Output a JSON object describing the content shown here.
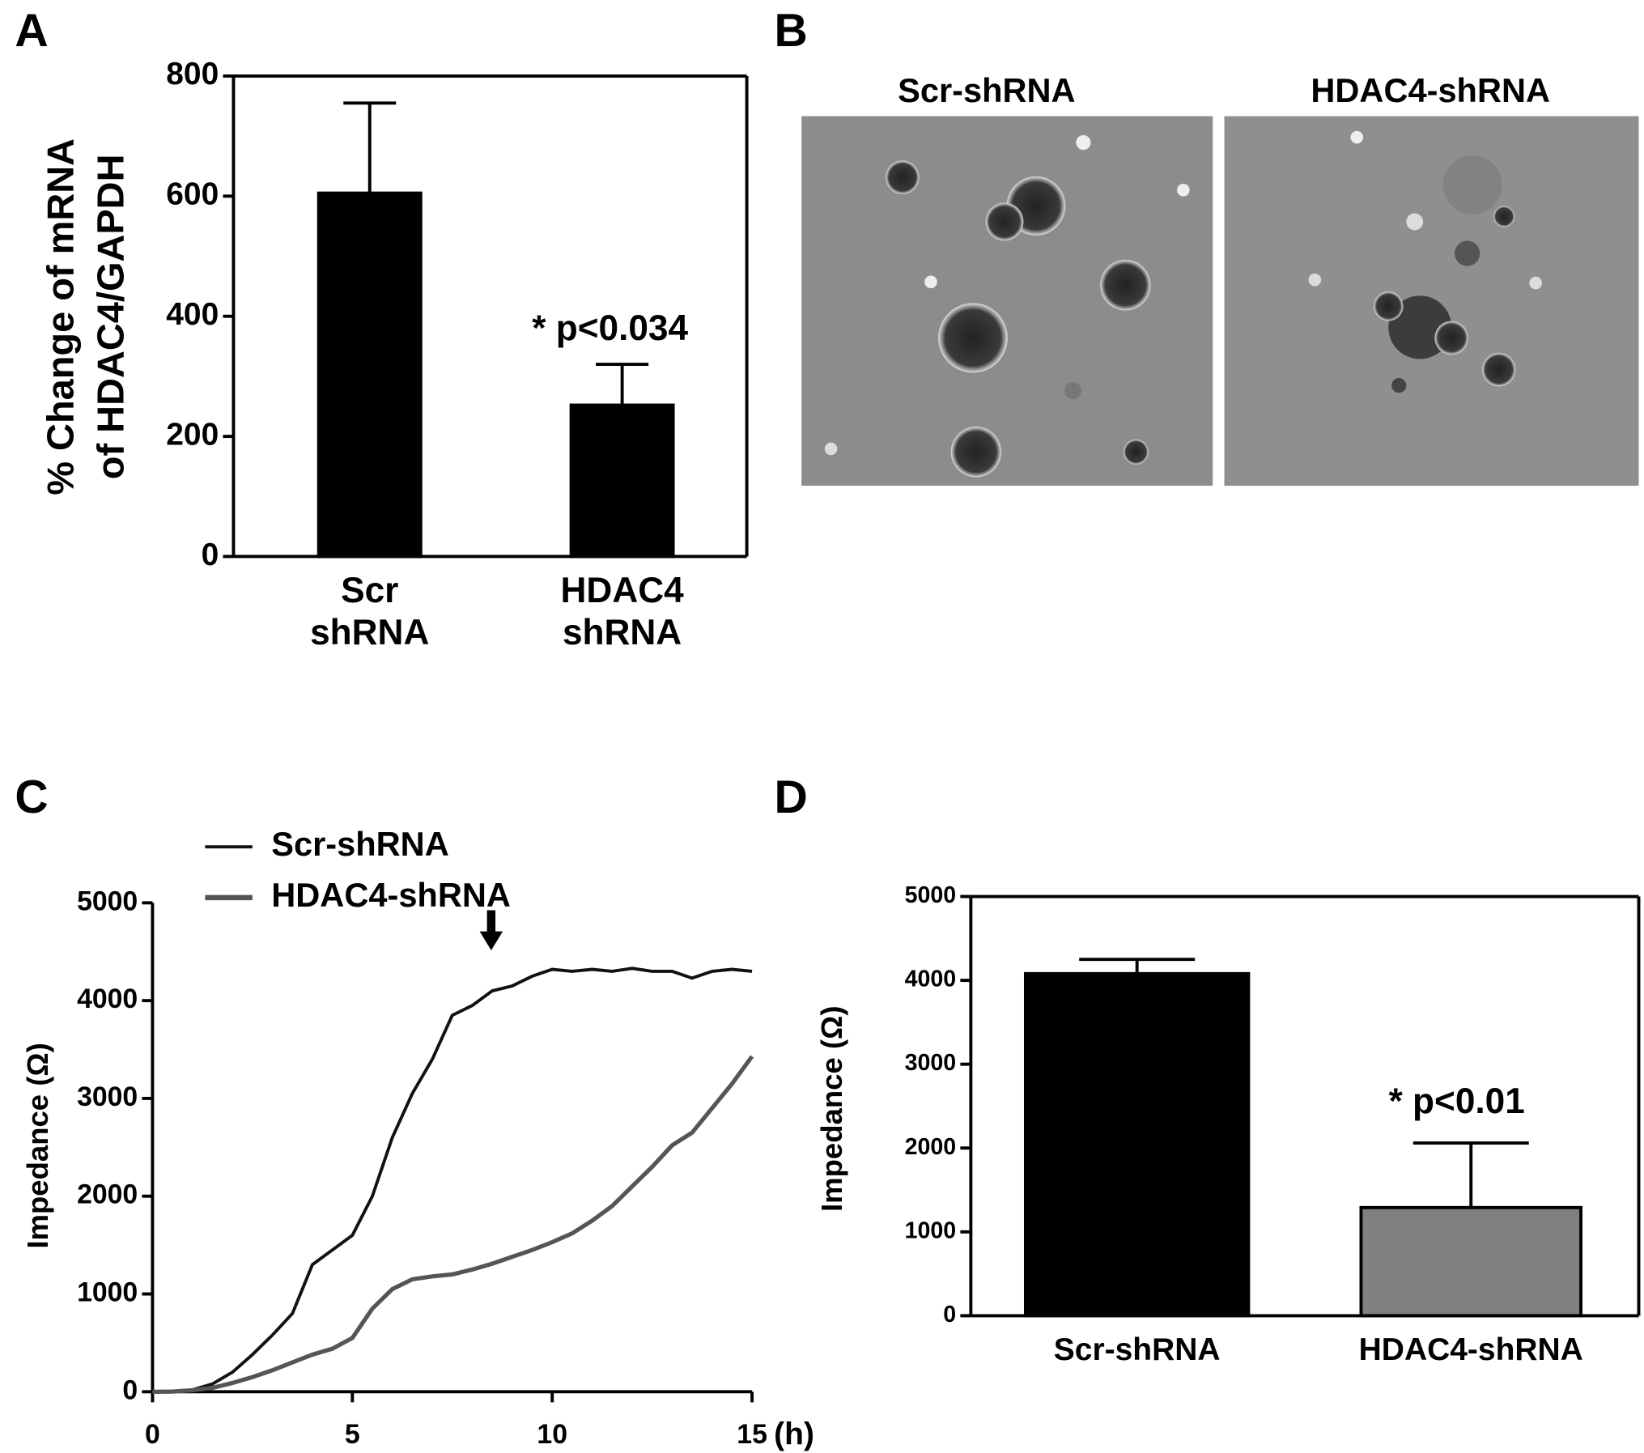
{
  "panel_labels": [
    "A",
    "B",
    "C",
    "D"
  ],
  "images": {
    "titles": [
      "Scr-shRNA",
      "HDAC4-shRNA"
    ]
  },
  "chart_data": [
    {
      "type": "bar",
      "ylabel": [
        "% Change  of mRNA",
        "of HDAC4/GAPDH"
      ],
      "categories": [
        "Scr shRNA",
        "HDAC4 shRNA"
      ],
      "values": [
        605,
        252
      ],
      "errors": [
        150,
        68
      ],
      "colors": [
        "#000000",
        "#000000"
      ],
      "ylim": [
        0,
        800
      ],
      "yticks": [
        0,
        200,
        400,
        600,
        800
      ],
      "annotation": "* p<0.034"
    },
    {
      "type": "line",
      "ylabel": "Impedance (Ω)",
      "xlabel": "(h)",
      "x": [
        0,
        0.5,
        1,
        1.5,
        2,
        2.5,
        3,
        3.5,
        4,
        4.5,
        5,
        5.5,
        6,
        6.5,
        7,
        7.5,
        8,
        8.5,
        9,
        9.5,
        10,
        10.5,
        11,
        11.5,
        12,
        12.5,
        13,
        13.5,
        14,
        14.5,
        15
      ],
      "series": [
        {
          "name": "Scr-shRNA",
          "color": "#111111",
          "values": [
            0,
            5,
            20,
            80,
            200,
            380,
            580,
            800,
            1300,
            1450,
            1600,
            2000,
            2600,
            3050,
            3400,
            3850,
            3950,
            4100,
            4150,
            4250,
            4320,
            4300,
            4320,
            4300,
            4330,
            4300,
            4300,
            4230,
            4300,
            4320,
            4300
          ]
        },
        {
          "name": "HDAC4-shRNA",
          "color": "#555555",
          "values": [
            0,
            2,
            15,
            40,
            90,
            150,
            220,
            300,
            380,
            440,
            550,
            850,
            1050,
            1150,
            1180,
            1200,
            1250,
            1310,
            1380,
            1450,
            1530,
            1620,
            1750,
            1900,
            2100,
            2300,
            2520,
            2650,
            2900,
            3150,
            3430
          ]
        }
      ],
      "xlim": [
        0,
        15
      ],
      "xticks": [
        0,
        5,
        10,
        15
      ],
      "ylim": [
        0,
        5000
      ],
      "yticks": [
        0,
        1000,
        2000,
        3000,
        4000,
        5000
      ],
      "legend": "upper left"
    },
    {
      "type": "bar",
      "ylabel": "Impedance (Ω)",
      "categories": [
        "Scr-shRNA",
        "HDAC4-shRNA"
      ],
      "values": [
        4080,
        1290
      ],
      "errors": [
        170,
        770
      ],
      "colors": [
        "#000000",
        "#808080"
      ],
      "ylim": [
        0,
        5000
      ],
      "yticks": [
        0,
        1000,
        2000,
        3000,
        4000,
        5000
      ],
      "annotation": "* p<0.01"
    }
  ]
}
